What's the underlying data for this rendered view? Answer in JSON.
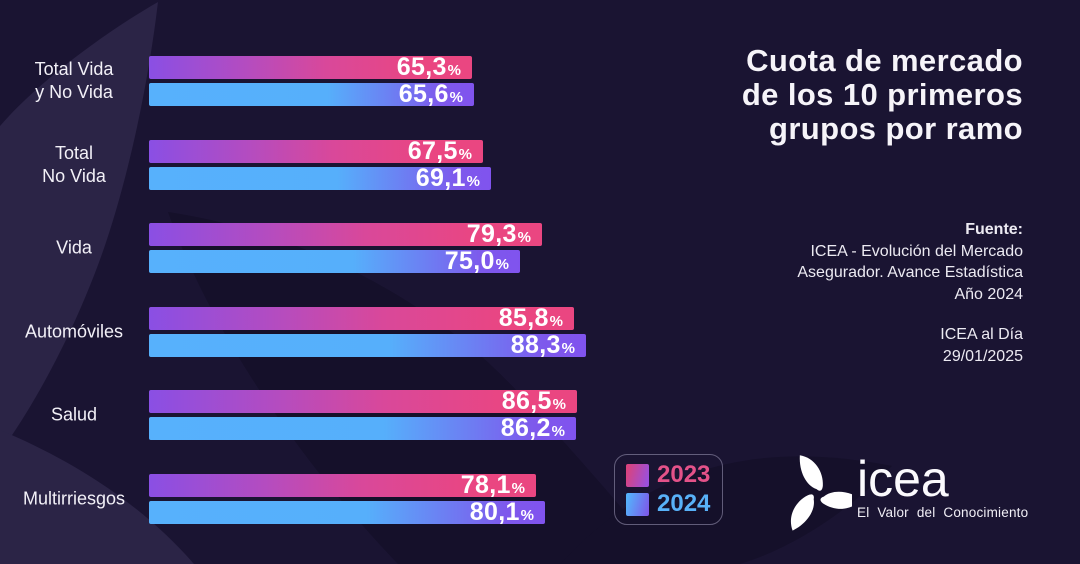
{
  "title": {
    "lines": [
      "Cuota de mercado",
      "de los 10 primeros",
      "grupos por ramo"
    ]
  },
  "source": {
    "block1": [
      "Fuente:",
      "ICEA - Evolución del Mercado",
      "Asegurador. Avance Estadística",
      "Año 2024"
    ],
    "block2": [
      "ICEA al Día",
      "29/01/2025"
    ]
  },
  "legend": {
    "items": [
      {
        "label": "2023",
        "color": "#e45289",
        "swatch_gradient": [
          "#d8437e",
          "#9b50dd"
        ]
      },
      {
        "label": "2024",
        "color": "#58b1f8",
        "swatch_gradient": [
          "#55b1fb",
          "#7d59e9"
        ]
      }
    ]
  },
  "logo": {
    "wordmark": "icea",
    "tagline": "El Valor del Conocimiento",
    "mark": "three-leaf-pinwheel-icon"
  },
  "colors": {
    "background": "#1a1432",
    "background_leaf_light": "#2b2446",
    "background_leaf_dark": "#15102a",
    "bar_2023_gradient": [
      "#8a4fe4",
      "#ea4681"
    ],
    "bar_2024_gradient": [
      "#57b1fc",
      "#8053ee"
    ],
    "value_text": "#ffffff",
    "label_text": "#f2f0f7"
  },
  "chart_data": {
    "type": "bar",
    "orientation": "horizontal",
    "title": "Cuota de mercado de los 10 primeros grupos por ramo",
    "unit": "%",
    "decimal_separator": ",",
    "xlim": [
      0,
      100
    ],
    "grid": false,
    "legend_position": "bottom-right",
    "categories": [
      "Total Vida y No Vida",
      "Total No Vida",
      "Vida",
      "Automóviles",
      "Salud",
      "Multirriesgos"
    ],
    "categories_display": [
      [
        "Total Vida",
        "y No Vida"
      ],
      [
        "Total",
        "No Vida"
      ],
      [
        "Vida"
      ],
      [
        "Automóviles"
      ],
      [
        "Salud"
      ],
      [
        "Multirriesgos"
      ]
    ],
    "series": [
      {
        "name": "2023",
        "values": [
          65.3,
          67.5,
          79.3,
          85.8,
          86.5,
          78.1
        ]
      },
      {
        "name": "2024",
        "values": [
          65.6,
          69.1,
          75.0,
          88.3,
          86.2,
          80.1
        ]
      }
    ],
    "value_labels": [
      [
        "65,3%",
        "67,5%",
        "79,3%",
        "85,8%",
        "86,5%",
        "78,1%"
      ],
      [
        "65,6%",
        "69,1%",
        "75,0%",
        "88,3%",
        "86,2%",
        "80,1%"
      ]
    ]
  }
}
